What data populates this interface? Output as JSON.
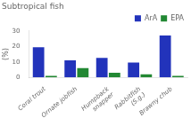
{
  "chart_data": {
    "type": "bar",
    "title": "Subtropical fish",
    "ylabel": "(%)",
    "categories": [
      "Coral trout",
      "Ornate jobfish",
      "Humpback\nsnapper",
      "Rabbitfish\n(S.g.)",
      "Brawny chub"
    ],
    "series": [
      {
        "name": "ArA",
        "color": "#2233bb",
        "values": [
          19.5,
          11.0,
          12.5,
          9.5,
          27.0
        ]
      },
      {
        "name": "EPA",
        "color": "#228833",
        "values": [
          1.0,
          6.0,
          3.0,
          2.0,
          1.0
        ]
      }
    ],
    "ylim": [
      0,
      30
    ],
    "yticks": [
      0,
      10,
      20,
      30
    ],
    "grid": false,
    "legend": "upper right"
  }
}
